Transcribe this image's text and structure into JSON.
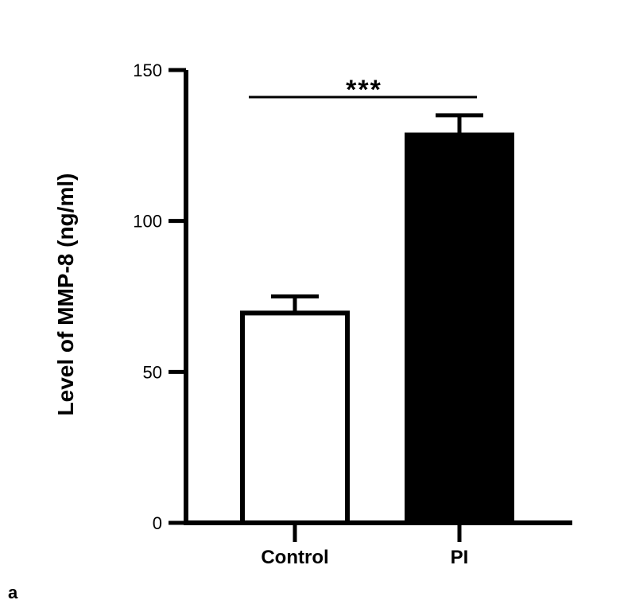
{
  "panel_label": "a",
  "chart_data": {
    "type": "bar",
    "categories": [
      "Control",
      "PI"
    ],
    "values": [
      69.5,
      128.5
    ],
    "errors": [
      5.5,
      6.5
    ],
    "bar_colors": [
      "#ffffff",
      "#000000"
    ],
    "ylabel": "Level of MMP-8 (ng/ml)",
    "xlabel": "",
    "ylim": [
      0,
      150
    ],
    "yticks": [
      0,
      50,
      100,
      150
    ],
    "significance": {
      "between": [
        "Control",
        "PI"
      ],
      "label": "***"
    },
    "grid": false,
    "legend": "none"
  }
}
